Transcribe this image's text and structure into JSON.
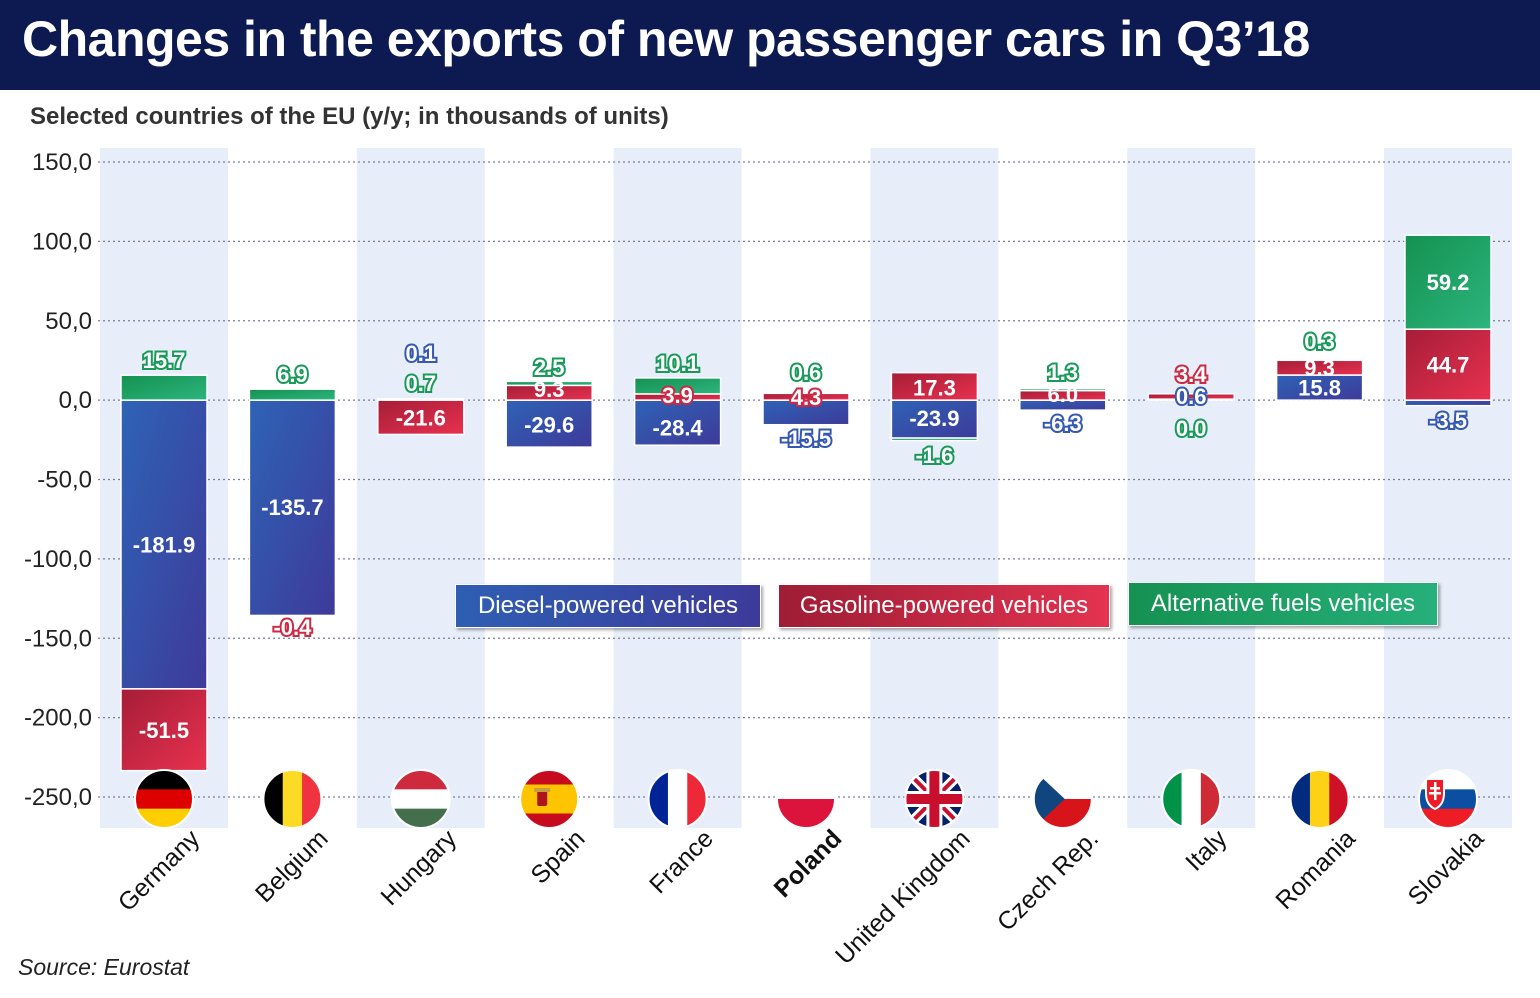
{
  "title": "Changes in the exports of new passenger cars in Q3’18",
  "subtitle": "Selected countries of the EU (y/y; in thousands of units)",
  "source": "Source: Eurostat",
  "legend": {
    "diesel": "Diesel-powered vehicles",
    "gasoline": "Gasoline-powered vehicles",
    "alternative": "Alternative fuels vehicles"
  },
  "colors": {
    "diesel": "#3b4fa8",
    "gasoline": "#c8243f",
    "alternative": "#1ea367",
    "header": "#0d1a52",
    "band": "#e7eef9"
  },
  "chart_data": {
    "type": "bar",
    "stacked": true,
    "title": "Changes in the exports of new passenger cars in Q3’18",
    "subtitle": "Selected countries of the EU (y/y; in thousands of units)",
    "ylim": [
      -250,
      150
    ],
    "yticks": [
      "150,0",
      "100,0",
      "50,0",
      "0,0",
      "-50,0",
      "-100,0",
      "-150,0",
      "-200,0",
      "-250,0"
    ],
    "ytick_values": [
      150,
      100,
      50,
      0,
      -50,
      -100,
      -150,
      -200,
      -250
    ],
    "grid": true,
    "legend_position": "bottom-center",
    "categories": [
      "Germany",
      "Belgium",
      "Hungary",
      "Spain",
      "France",
      "Poland",
      "United Kingdom",
      "Czech Rep.",
      "Italy",
      "Romania",
      "Slovakia"
    ],
    "bold_category": "Poland",
    "series": [
      {
        "name": "Diesel-powered vehicles",
        "key": "diesel",
        "values": [
          -181.9,
          -135.7,
          0.1,
          -29.6,
          -28.4,
          -15.5,
          -23.9,
          -6.3,
          0.6,
          15.8,
          -3.5
        ],
        "labels": [
          "-181.9",
          "-135.7",
          "0.1",
          "-29.6",
          "-28.4",
          "-15.5",
          "-23.9",
          "-6.3",
          "0.6",
          "15.8",
          "-3.5"
        ]
      },
      {
        "name": "Gasoline-powered vehicles",
        "key": "gasoline",
        "values": [
          -51.5,
          -0.4,
          -21.6,
          9.3,
          3.9,
          4.3,
          17.3,
          6.0,
          3.4,
          9.3,
          44.7
        ],
        "labels": [
          "-51.5",
          "-0.4",
          "-21.6",
          "9.3",
          "3.9",
          "4.3",
          "17.3",
          "6.0",
          "3.4",
          "9.3",
          "44.7"
        ]
      },
      {
        "name": "Alternative fuels vehicles",
        "key": "alternative",
        "values": [
          15.7,
          6.9,
          0.7,
          2.5,
          10.1,
          0.6,
          -1.6,
          1.3,
          0.0,
          0.3,
          59.2
        ],
        "labels": [
          "15.7",
          "6.9",
          "0.7",
          "2.5",
          "10.1",
          "0.6",
          "-1.6",
          "1.3",
          "0.0",
          "0.3",
          "59.2"
        ]
      }
    ]
  }
}
